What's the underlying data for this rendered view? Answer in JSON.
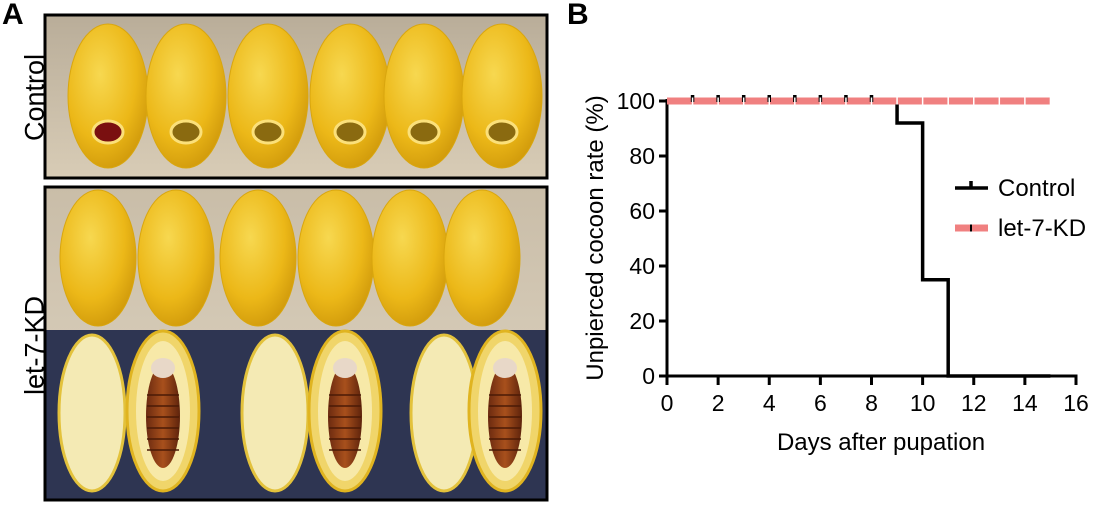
{
  "panels": {
    "a_letter": "A",
    "b_letter": "B"
  },
  "photo_labels": {
    "control": "Control",
    "kd": "let-7-KD"
  },
  "colors": {
    "control_line": "#000000",
    "kd_line": "#f08080",
    "cocoon_yellow": "#f2c21a",
    "photo_bg_top": "#cdbfa8",
    "photo_bg_bottom": "#2e3552"
  },
  "chart_data": {
    "type": "line",
    "chart_kind": "survival step plot",
    "xlabel": "Days after pupation",
    "ylabel": "Unpierced cocoon rate (%)",
    "xlim": [
      0,
      16
    ],
    "ylim": [
      0,
      100
    ],
    "xticks": [
      "0",
      "2",
      "4",
      "6",
      "8",
      "10",
      "12",
      "14",
      "16"
    ],
    "yticks": [
      "0",
      "20",
      "40",
      "60",
      "80",
      "100"
    ],
    "legend_position": "right-middle",
    "series": [
      {
        "name": "Control",
        "color": "#000000",
        "steps": [
          [
            0,
            100
          ],
          [
            9,
            100
          ],
          [
            9,
            92
          ],
          [
            10,
            92
          ],
          [
            10,
            35
          ],
          [
            11,
            35
          ],
          [
            11,
            0
          ],
          [
            15,
            0
          ]
        ],
        "censor_ticks_x": [
          1,
          2,
          3,
          4,
          5,
          6,
          7,
          8
        ]
      },
      {
        "name": "let-7-KD",
        "color": "#f08080",
        "steps": [
          [
            0,
            100
          ],
          [
            15,
            100
          ]
        ],
        "censor_ticks_x": [
          1,
          2,
          3,
          4,
          5,
          6,
          7,
          8,
          9,
          10,
          11,
          12,
          13,
          14,
          15
        ]
      }
    ]
  }
}
